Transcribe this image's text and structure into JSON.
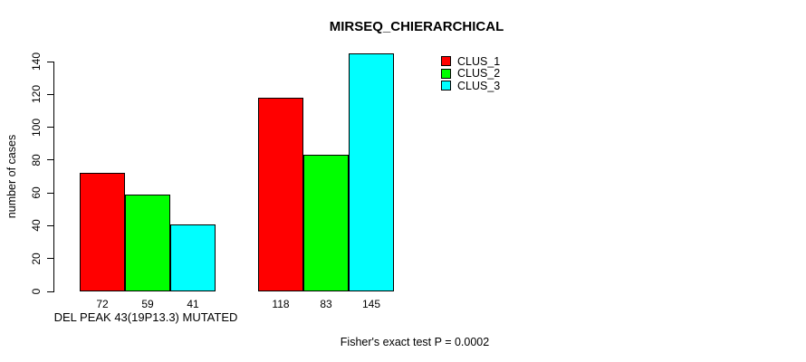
{
  "chart_data": {
    "type": "bar",
    "title": "MIRSEQ_CHIERARCHICAL",
    "ylabel": "number of cases",
    "xlabel": "DEL PEAK 43(19P13.3) MUTATED",
    "footnote": "Fisher's exact test P = 0.0002",
    "ylim": [
      0,
      140
    ],
    "yticks": [
      0,
      20,
      40,
      60,
      80,
      100,
      120,
      140
    ],
    "grid": false,
    "legend_position": "top-right",
    "series": [
      {
        "name": "CLUS_1",
        "color": "#FF0000"
      },
      {
        "name": "CLUS_2",
        "color": "#00FF00"
      },
      {
        "name": "CLUS_3",
        "color": "#00FFFF"
      }
    ],
    "groups": [
      {
        "label": "DEL PEAK 43(19P13.3) MUTATED",
        "values": [
          72,
          59,
          41
        ]
      },
      {
        "label": "",
        "values": [
          118,
          83,
          145
        ]
      }
    ]
  }
}
